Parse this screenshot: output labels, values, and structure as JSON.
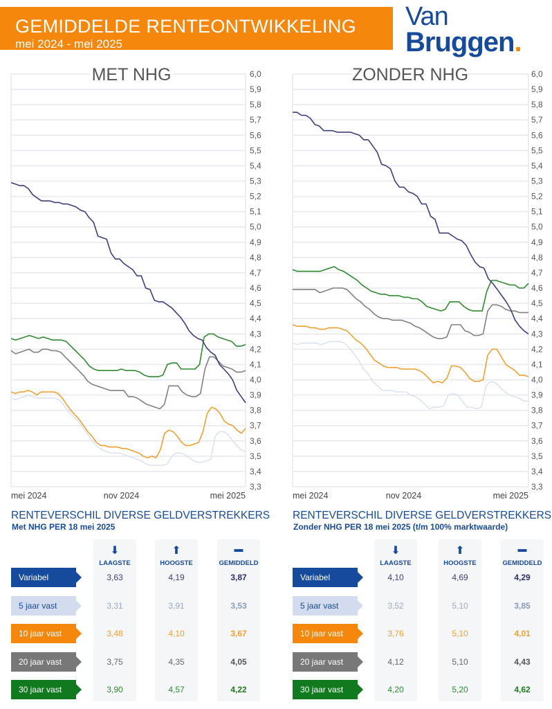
{
  "header": {
    "title": "GEMIDDELDE RENTEONTWIKKELING",
    "subtitle": "mei 2024 - mei 2025",
    "brand_line1": "Van",
    "brand_line2": "Bruggen",
    "brand_dot": "."
  },
  "colors": {
    "orange": "#f5870c",
    "brand_blue": "#164a9c",
    "variabel": "#3b3f7d",
    "vijf": "#d3dcee",
    "tien": "#f0a030",
    "twintig": "#808080",
    "dertig": "#2e8b2e"
  },
  "chart_data": [
    {
      "type": "line",
      "title": "MET NHG",
      "xlabel": "",
      "ylabel": "",
      "x_tick_labels": [
        "mei 2024",
        "nov 2024",
        "mei 2025"
      ],
      "y_tick_labels": [
        "6,0",
        "5,9",
        "5,8",
        "5,7",
        "5,6",
        "5,5",
        "5,4",
        "5,3",
        "5,2",
        "5,1",
        "5,0",
        "4,9",
        "4,8",
        "4,7",
        "4,6",
        "4,5",
        "4,4",
        "4,3",
        "4,2",
        "4,1",
        "4,0",
        "3,9",
        "3,8",
        "3,7",
        "3,6",
        "3,5",
        "3,4",
        "3,3"
      ],
      "ylim": [
        3.3,
        6.0
      ],
      "y_axis_position": "right",
      "grid": true,
      "series": [
        {
          "name": "Variabel",
          "color": "#3b3f7d",
          "values": [
            5.29,
            5.28,
            5.27,
            5.27,
            5.25,
            5.21,
            5.19,
            5.17,
            5.17,
            5.17,
            5.16,
            5.16,
            5.15,
            5.15,
            5.14,
            5.13,
            5.11,
            5.1,
            5.06,
            5.03,
            4.94,
            4.93,
            4.92,
            4.83,
            4.79,
            4.79,
            4.76,
            4.74,
            4.72,
            4.68,
            4.68,
            4.6,
            4.59,
            4.52,
            4.51,
            4.51,
            4.49,
            4.47,
            4.44,
            4.41,
            4.37,
            4.32,
            4.29,
            4.27,
            4.26,
            4.21,
            4.18,
            4.16,
            4.1,
            4.07,
            4.04,
            4.0,
            3.93,
            3.89,
            3.85
          ]
        },
        {
          "name": "5 jaar vast",
          "color": "#d8dff0",
          "values": [
            3.88,
            3.87,
            3.88,
            3.89,
            3.9,
            3.89,
            3.88,
            3.88,
            3.88,
            3.88,
            3.88,
            3.87,
            3.84,
            3.8,
            3.77,
            3.74,
            3.71,
            3.67,
            3.63,
            3.59,
            3.56,
            3.54,
            3.53,
            3.52,
            3.52,
            3.52,
            3.51,
            3.5,
            3.49,
            3.48,
            3.47,
            3.45,
            3.44,
            3.44,
            3.44,
            3.44,
            3.45,
            3.5,
            3.52,
            3.52,
            3.51,
            3.49,
            3.47,
            3.46,
            3.46,
            3.47,
            3.48,
            3.63,
            3.66,
            3.66,
            3.64,
            3.6,
            3.57,
            3.54,
            3.53
          ]
        },
        {
          "name": "10 jaar vast",
          "color": "#f0a030",
          "values": [
            3.92,
            3.91,
            3.92,
            3.92,
            3.93,
            3.92,
            3.9,
            3.92,
            3.92,
            3.92,
            3.92,
            3.91,
            3.88,
            3.84,
            3.8,
            3.77,
            3.74,
            3.7,
            3.66,
            3.63,
            3.59,
            3.57,
            3.57,
            3.56,
            3.56,
            3.56,
            3.55,
            3.55,
            3.54,
            3.53,
            3.52,
            3.5,
            3.49,
            3.5,
            3.49,
            3.54,
            3.65,
            3.67,
            3.66,
            3.63,
            3.59,
            3.57,
            3.57,
            3.58,
            3.59,
            3.66,
            3.78,
            3.82,
            3.81,
            3.78,
            3.73,
            3.71,
            3.7,
            3.67,
            3.65,
            3.68
          ]
        },
        {
          "name": "20 jaar vast",
          "color": "#808080",
          "values": [
            4.19,
            4.17,
            4.18,
            4.19,
            4.2,
            4.18,
            4.18,
            4.2,
            4.2,
            4.19,
            4.19,
            4.18,
            4.15,
            4.12,
            4.09,
            4.06,
            4.03,
            3.99,
            3.97,
            3.96,
            3.95,
            3.94,
            3.93,
            3.93,
            3.93,
            3.93,
            3.89,
            3.89,
            3.88,
            3.86,
            3.84,
            3.83,
            3.82,
            3.81,
            3.84,
            3.96,
            3.96,
            3.96,
            3.92,
            3.9,
            3.89,
            3.89,
            3.91,
            4.07,
            4.15,
            4.15,
            4.12,
            4.09,
            4.08,
            4.07,
            4.05,
            4.05,
            4.06
          ]
        },
        {
          "name": "30 jaar vast",
          "color": "#2e8b2e",
          "values": [
            4.27,
            4.26,
            4.27,
            4.28,
            4.29,
            4.28,
            4.27,
            4.28,
            4.27,
            4.26,
            4.26,
            4.26,
            4.25,
            4.22,
            4.19,
            4.16,
            4.13,
            4.09,
            4.07,
            4.06,
            4.06,
            4.06,
            4.06,
            4.06,
            4.07,
            4.06,
            4.06,
            4.06,
            4.05,
            4.03,
            4.02,
            4.02,
            4.02,
            4.03,
            4.1,
            4.11,
            4.11,
            4.07,
            4.07,
            4.07,
            4.07,
            4.1,
            4.28,
            4.3,
            4.3,
            4.28,
            4.27,
            4.26,
            4.25,
            4.22,
            4.22,
            4.23
          ]
        }
      ]
    },
    {
      "type": "line",
      "title": "ZONDER NHG",
      "xlabel": "",
      "ylabel": "",
      "x_tick_labels": [
        "mei 2024",
        "nov 2024",
        "mei 2025"
      ],
      "y_tick_labels": [
        "6,0",
        "5,9",
        "5,8",
        "5,7",
        "5,6",
        "5,5",
        "5,4",
        "5,3",
        "5,2",
        "5,1",
        "5,0",
        "4,9",
        "4,8",
        "4,7",
        "4,6",
        "4,5",
        "4,4",
        "4,3",
        "4,2",
        "4,1",
        "4,0",
        "3,9",
        "3,8",
        "3,7",
        "3,6",
        "3,5",
        "3,4",
        "3,3"
      ],
      "ylim": [
        3.3,
        6.0
      ],
      "y_axis_position": "right",
      "grid": true,
      "series": [
        {
          "name": "Variabel",
          "color": "#3b3f7d",
          "values": [
            5.75,
            5.75,
            5.73,
            5.73,
            5.71,
            5.67,
            5.66,
            5.63,
            5.63,
            5.63,
            5.62,
            5.62,
            5.62,
            5.62,
            5.61,
            5.6,
            5.57,
            5.57,
            5.53,
            5.49,
            5.41,
            5.4,
            5.38,
            5.3,
            5.26,
            5.26,
            5.23,
            5.22,
            5.2,
            5.15,
            5.15,
            5.07,
            5.05,
            4.96,
            4.96,
            4.96,
            4.94,
            4.92,
            4.91,
            4.88,
            4.82,
            4.77,
            4.74,
            4.73,
            4.66,
            4.63,
            4.59,
            4.55,
            4.51,
            4.46,
            4.39,
            4.35,
            4.32,
            4.3
          ]
        },
        {
          "name": "5 jaar vast",
          "color": "#d8dff0",
          "values": [
            4.24,
            4.23,
            4.24,
            4.24,
            4.24,
            4.24,
            4.23,
            4.24,
            4.25,
            4.25,
            4.25,
            4.24,
            4.21,
            4.17,
            4.13,
            4.07,
            4.04,
            3.99,
            3.96,
            3.93,
            3.93,
            3.93,
            3.92,
            3.92,
            3.92,
            3.9,
            3.89,
            3.87,
            3.84,
            3.81,
            3.82,
            3.82,
            3.83,
            3.9,
            3.91,
            3.9,
            3.86,
            3.82,
            3.82,
            3.81,
            3.82,
            3.96,
            3.99,
            3.98,
            3.95,
            3.92,
            3.9,
            3.89,
            3.88,
            3.86,
            3.86
          ]
        },
        {
          "name": "10 jaar vast",
          "color": "#f0a030",
          "values": [
            4.36,
            4.35,
            4.35,
            4.35,
            4.34,
            4.34,
            4.33,
            4.33,
            4.34,
            4.34,
            4.34,
            4.33,
            4.32,
            4.29,
            4.26,
            4.24,
            4.21,
            4.17,
            4.13,
            4.11,
            4.09,
            4.08,
            4.08,
            4.08,
            4.07,
            4.07,
            4.07,
            4.07,
            4.06,
            4.04,
            4.01,
            3.98,
            3.99,
            3.98,
            4.01,
            4.09,
            4.09,
            4.08,
            4.05,
            4.01,
            3.99,
            3.99,
            4.0,
            4.16,
            4.2,
            4.2,
            4.15,
            4.1,
            4.08,
            4.06,
            4.03,
            4.03,
            4.02
          ]
        },
        {
          "name": "20 jaar vast",
          "color": "#808080",
          "values": [
            4.59,
            4.59,
            4.59,
            4.59,
            4.59,
            4.59,
            4.57,
            4.58,
            4.59,
            4.6,
            4.6,
            4.6,
            4.59,
            4.56,
            4.53,
            4.51,
            4.48,
            4.46,
            4.43,
            4.41,
            4.4,
            4.4,
            4.39,
            4.39,
            4.39,
            4.38,
            4.37,
            4.35,
            4.34,
            4.32,
            4.3,
            4.28,
            4.27,
            4.27,
            4.28,
            4.36,
            4.36,
            4.36,
            4.32,
            4.31,
            4.29,
            4.29,
            4.3,
            4.45,
            4.49,
            4.49,
            4.48,
            4.46,
            4.45,
            4.45,
            4.44,
            4.44,
            4.44
          ]
        },
        {
          "name": "30 jaar vast",
          "color": "#2e8b2e",
          "values": [
            4.72,
            4.71,
            4.71,
            4.71,
            4.71,
            4.71,
            4.71,
            4.72,
            4.73,
            4.74,
            4.72,
            4.71,
            4.69,
            4.67,
            4.65,
            4.62,
            4.6,
            4.58,
            4.57,
            4.56,
            4.56,
            4.55,
            4.55,
            4.55,
            4.54,
            4.54,
            4.53,
            4.53,
            4.51,
            4.48,
            4.47,
            4.46,
            4.45,
            4.46,
            4.51,
            4.51,
            4.51,
            4.48,
            4.46,
            4.45,
            4.45,
            4.45,
            4.58,
            4.65,
            4.65,
            4.64,
            4.63,
            4.62,
            4.62,
            4.6,
            4.6,
            4.63
          ]
        }
      ]
    }
  ],
  "tables": [
    {
      "title": "RENTEVERSCHIL DIVERSE GELDVERSTREKKERS",
      "subtitle": "Met NHG PER 18 mei 2025",
      "columns": [
        "LAAGSTE",
        "HOOGSTE",
        "GEMIDDELD"
      ],
      "rows": [
        {
          "label": "Variabel",
          "values": [
            "3,63",
            "4,19",
            "3,87"
          ]
        },
        {
          "label": "5 jaar vast",
          "values": [
            "3,31",
            "3,91",
            "3,53"
          ]
        },
        {
          "label": "10 jaar vast",
          "values": [
            "3,48",
            "4,10",
            "3,67"
          ]
        },
        {
          "label": "20 jaar vast",
          "values": [
            "3,75",
            "4,35",
            "4,05"
          ]
        },
        {
          "label": "30 jaar vast",
          "values": [
            "3,90",
            "4,57",
            "4,22"
          ]
        }
      ]
    },
    {
      "title": "RENTEVERSCHIL DIVERSE GELDVERSTREKKERS",
      "subtitle": "Zonder NHG PER 18 mei 2025 (t/m 100% marktwaarde)",
      "columns": [
        "LAAGSTE",
        "HOOGSTE",
        "GEMIDDELD"
      ],
      "rows": [
        {
          "label": "Variabel",
          "values": [
            "4,10",
            "4,69",
            "4,29"
          ]
        },
        {
          "label": "5 jaar vast",
          "values": [
            "3,52",
            "5,10",
            "3,85"
          ]
        },
        {
          "label": "10 jaar vast",
          "values": [
            "3,76",
            "5,10",
            "4,01"
          ]
        },
        {
          "label": "20 jaar vast",
          "values": [
            "4,12",
            "5,10",
            "4,43"
          ]
        },
        {
          "label": "30 jaar vast",
          "values": [
            "4,20",
            "5,20",
            "4,62"
          ]
        }
      ]
    }
  ],
  "icons": [
    "arrow-down-icon",
    "arrow-up-icon",
    "minus-icon"
  ]
}
